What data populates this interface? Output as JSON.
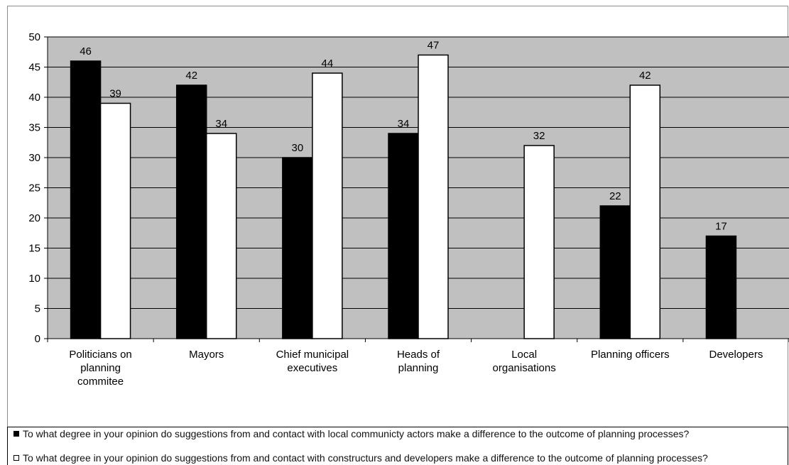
{
  "chart_data": {
    "type": "bar",
    "categories": [
      "Politicians on planning commitee",
      "Mayors",
      "Chief municipal executives",
      "Heads of planning",
      "Local organisations",
      "Planning officers",
      "Developers"
    ],
    "category_lines": [
      [
        "Politicians on",
        "planning",
        "commitee"
      ],
      [
        "Mayors"
      ],
      [
        "Chief municipal",
        "executives"
      ],
      [
        "Heads of",
        "planning"
      ],
      [
        "Local",
        "organisations"
      ],
      [
        "Planning officers"
      ],
      [
        "Developers"
      ]
    ],
    "series": [
      {
        "name": "To what degree in your opinion do suggestions from and contact with local communicty actors make a difference to the outcome of planning processes?",
        "color": "#000000",
        "values": [
          46,
          42,
          30,
          34,
          null,
          22,
          17
        ]
      },
      {
        "name": "To what degree in your opinion do suggestions from and contact with constructurs and developers make a difference to the outcome of planning processes?",
        "color": "#ffffff",
        "values": [
          39,
          34,
          44,
          47,
          32,
          42,
          null
        ]
      }
    ],
    "ylim": [
      0,
      50
    ],
    "yticks": [
      "0",
      "5",
      "10",
      "15",
      "20",
      "25",
      "30",
      "35",
      "40",
      "45",
      "50"
    ],
    "grid": true,
    "plot_background": "#c0c0c0",
    "legend_position": "bottom"
  }
}
